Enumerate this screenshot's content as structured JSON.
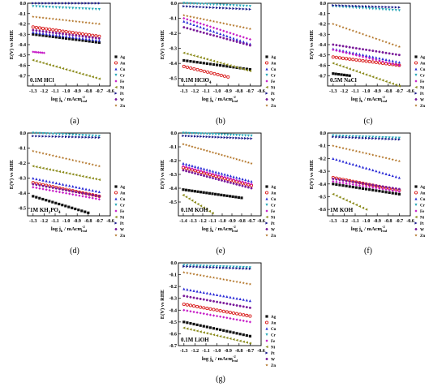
{
  "figure": {
    "ylabel": "E(V) vs RHE",
    "xlabel_main": "log j",
    "xlabel_sub": "k",
    "xlabel_unit": " / mAcm",
    "xlabel_sup": "-2",
    "xlabel_unit_sub": "real",
    "legend": [
      "Ag",
      "Au",
      "Cu",
      "Cr",
      "Fe",
      "Ni",
      "Pt",
      "W",
      "Zn"
    ]
  },
  "series_style": {
    "Ag": {
      "color": "#111111",
      "marker": "square"
    },
    "Au": {
      "color": "#d81b1b",
      "marker": "circle"
    },
    "Cu": {
      "color": "#2a2ad6",
      "marker": "triangle"
    },
    "Cr": {
      "color": "#27a8b8",
      "marker": "triangle-down"
    },
    "Fe": {
      "color": "#c61ac6",
      "marker": "diamond"
    },
    "Ni": {
      "color": "#8a8a1a",
      "marker": "triangle-left"
    },
    "Pt": {
      "color": "#1a1a8a",
      "marker": "triangle-right"
    },
    "W": {
      "color": "#7a1a9a",
      "marker": "hexagon"
    },
    "Zn": {
      "color": "#b07020",
      "marker": "star"
    }
  },
  "chart_data": [
    {
      "type": "scatter",
      "caption": "(a)",
      "label_main": "0.1M HCl",
      "label_sub": "",
      "xlim": [
        -1.35,
        -0.6
      ],
      "ylim": [
        -0.8,
        0.0
      ],
      "xticks": [
        "-1.3",
        "-1.2",
        "-1.1",
        "-1.0",
        "-0.9",
        "-0.8",
        "-0.7",
        "-0.6"
      ],
      "yticks": [
        "0.0",
        "-0.1",
        "-0.2",
        "-0.3",
        "-0.4",
        "-0.5",
        "-0.6",
        "-0.7"
      ],
      "series": [
        {
          "name": "Ag",
          "x": [
            -1.3,
            -0.7
          ],
          "y": [
            -0.3,
            -0.38
          ]
        },
        {
          "name": "Au",
          "x": [
            -1.3,
            -0.7
          ],
          "y": [
            -0.23,
            -0.32
          ]
        },
        {
          "name": "Cu",
          "x": [
            -1.3,
            -0.7
          ],
          "y": [
            -0.28,
            -0.36
          ]
        },
        {
          "name": "Cr",
          "x": [
            -1.3,
            -0.7
          ],
          "y": [
            -0.03,
            -0.06
          ]
        },
        {
          "name": "Fe",
          "x": [
            -1.3,
            -1.2
          ],
          "y": [
            -0.47,
            -0.48
          ]
        },
        {
          "name": "Ni",
          "x": [
            -1.3,
            -0.7
          ],
          "y": [
            -0.55,
            -0.73
          ]
        },
        {
          "name": "Pt",
          "x": [
            -1.3,
            -0.7
          ],
          "y": [
            0.0,
            0.0
          ]
        },
        {
          "name": "W",
          "x": [
            -1.3,
            -0.7
          ],
          "y": [
            -0.26,
            -0.34
          ]
        },
        {
          "name": "Zn",
          "x": [
            -1.3,
            -0.7
          ],
          "y": [
            -0.13,
            -0.2
          ]
        }
      ]
    },
    {
      "type": "scatter",
      "caption": "(b)",
      "label_main": "0.1M HClO",
      "label_sub": "4",
      "xlim": [
        -1.35,
        -0.6
      ],
      "ylim": [
        -0.55,
        0.0
      ],
      "xticks": [
        "-1.3",
        "-1.2",
        "-1.1",
        "-1.0",
        "-0.9",
        "-0.8",
        "-0.7",
        "-0.6"
      ],
      "yticks": [
        "0.0",
        "-0.1",
        "-0.2",
        "-0.3",
        "-0.4",
        "-0.5"
      ],
      "series": [
        {
          "name": "Ag",
          "x": [
            -1.3,
            -0.7
          ],
          "y": [
            -0.38,
            -0.44
          ]
        },
        {
          "name": "Au",
          "x": [
            -1.3,
            -0.9
          ],
          "y": [
            -0.42,
            -0.49
          ]
        },
        {
          "name": "Cu",
          "x": [
            -1.3,
            -0.7
          ],
          "y": [
            -0.12,
            -0.27
          ]
        },
        {
          "name": "Cr",
          "x": [
            -1.3,
            -0.7
          ],
          "y": [
            0.0,
            -0.02
          ]
        },
        {
          "name": "Fe",
          "x": [
            -1.3,
            -0.7
          ],
          "y": [
            -0.1,
            -0.24
          ]
        },
        {
          "name": "Ni",
          "x": [
            -1.3,
            -0.7
          ],
          "y": [
            -0.33,
            -0.45
          ]
        },
        {
          "name": "Pt",
          "x": [
            -1.3,
            -0.7
          ],
          "y": [
            -0.02,
            -0.04
          ]
        },
        {
          "name": "W",
          "x": [
            -1.3,
            -0.7
          ],
          "y": [
            -0.16,
            -0.28
          ]
        },
        {
          "name": "Zn",
          "x": [
            -1.3,
            -0.7
          ],
          "y": [
            -0.08,
            -0.17
          ]
        }
      ]
    },
    {
      "type": "scatter",
      "caption": "(c)",
      "label_main": "0.5M NaCl",
      "label_sub": "",
      "xlim": [
        -1.35,
        -0.6
      ],
      "ylim": [
        -0.8,
        0.0
      ],
      "xticks": [
        "-1.3",
        "-1.2",
        "-1.1",
        "-1.0",
        "-0.9",
        "-0.8",
        "-0.7",
        "-0.6"
      ],
      "yticks": [
        "0.0",
        "-0.1",
        "-0.2",
        "-0.3",
        "-0.4",
        "-0.5",
        "-0.6",
        "-0.7"
      ],
      "series": [
        {
          "name": "Ag",
          "x": [
            -1.3,
            -1.15
          ],
          "y": [
            -0.68,
            -0.7
          ]
        },
        {
          "name": "Au",
          "x": [
            -1.3,
            -0.7
          ],
          "y": [
            -0.52,
            -0.6
          ]
        },
        {
          "name": "Cu",
          "x": [
            -1.3,
            -0.7
          ],
          "y": [
            -0.44,
            -0.57
          ]
        },
        {
          "name": "Cr",
          "x": [
            -1.3,
            -0.7
          ],
          "y": [
            -0.03,
            -0.07
          ]
        },
        {
          "name": "Fe",
          "x": [
            -1.3,
            -0.7
          ],
          "y": [
            -0.45,
            -0.6
          ]
        },
        {
          "name": "Ni",
          "x": [
            -1.3,
            -0.7
          ],
          "y": [
            -0.58,
            -0.8
          ]
        },
        {
          "name": "Pt",
          "x": [
            -1.3,
            -0.7
          ],
          "y": [
            -0.02,
            -0.04
          ]
        },
        {
          "name": "W",
          "x": [
            -1.3,
            -0.7
          ],
          "y": [
            -0.4,
            -0.5
          ]
        },
        {
          "name": "Zn",
          "x": [
            -1.3,
            -0.7
          ],
          "y": [
            -0.2,
            -0.42
          ]
        }
      ]
    },
    {
      "type": "scatter",
      "caption": "(d)",
      "label_main": "1M KH",
      "label_sub": "2",
      "label_tail": "PO",
      "label_sub2": "4",
      "xlim": [
        -1.35,
        -0.6
      ],
      "ylim": [
        -0.55,
        0.0
      ],
      "xticks": [
        "-1.3",
        "-1.2",
        "-1.1",
        "-1.0",
        "-0.9",
        "-0.8",
        "-0.7",
        "-0.6"
      ],
      "yticks": [
        "0.0",
        "-0.1",
        "-0.2",
        "-0.3",
        "-0.4",
        "-0.5"
      ],
      "series": [
        {
          "name": "Ag",
          "x": [
            -1.3,
            -0.8
          ],
          "y": [
            -0.42,
            -0.53
          ]
        },
        {
          "name": "Au",
          "x": [
            -1.3,
            -0.7
          ],
          "y": [
            -0.33,
            -0.42
          ]
        },
        {
          "name": "Cu",
          "x": [
            -1.3,
            -0.7
          ],
          "y": [
            -0.3,
            -0.39
          ]
        },
        {
          "name": "Cr",
          "x": [
            -1.3,
            -0.7
          ],
          "y": [
            0.0,
            -0.02
          ]
        },
        {
          "name": "Fe",
          "x": [
            -1.3,
            -0.7
          ],
          "y": [
            -0.36,
            -0.44
          ]
        },
        {
          "name": "Ni",
          "x": [
            -1.3,
            -0.7
          ],
          "y": [
            -0.22,
            -0.31
          ]
        },
        {
          "name": "Pt",
          "x": [
            -1.3,
            -0.7
          ],
          "y": [
            -0.02,
            -0.03
          ]
        },
        {
          "name": "W",
          "x": [
            -1.3,
            -0.7
          ],
          "y": [
            -0.34,
            -0.42
          ]
        },
        {
          "name": "Zn",
          "x": [
            -1.3,
            -0.7
          ],
          "y": [
            -0.12,
            -0.22
          ]
        }
      ]
    },
    {
      "type": "scatter",
      "caption": "(e)",
      "label_main": "0.1M KOH",
      "label_sub": "",
      "xlim": [
        -1.45,
        -0.6
      ],
      "ylim": [
        -0.6,
        0.0
      ],
      "xticks": [
        "-1.4",
        "-1.3",
        "-1.2",
        "-1.1",
        "-1.0",
        "-0.9",
        "-0.8",
        "-0.7",
        "-0.6"
      ],
      "yticks": [
        "0.0",
        "-0.1",
        "-0.2",
        "-0.3",
        "-0.4",
        "-0.5"
      ],
      "series": [
        {
          "name": "Ag",
          "x": [
            -1.4,
            -0.8
          ],
          "y": [
            -0.41,
            -0.47
          ]
        },
        {
          "name": "Au",
          "x": [
            -1.4,
            -0.7
          ],
          "y": [
            -0.25,
            -0.38
          ]
        },
        {
          "name": "Cu",
          "x": [
            -1.4,
            -0.7
          ],
          "y": [
            -0.22,
            -0.35
          ]
        },
        {
          "name": "Cr",
          "x": [
            -1.4,
            -0.7
          ],
          "y": [
            0.0,
            -0.02
          ]
        },
        {
          "name": "Fe",
          "x": [
            -1.4,
            -0.7
          ],
          "y": [
            -0.24,
            -0.37
          ]
        },
        {
          "name": "Ni",
          "x": [
            -1.4,
            -1.1
          ],
          "y": [
            -0.45,
            -0.58
          ]
        },
        {
          "name": "Pt",
          "x": [
            -1.4,
            -0.7
          ],
          "y": [
            -0.02,
            -0.04
          ]
        },
        {
          "name": "W",
          "x": [
            -1.4,
            -0.7
          ],
          "y": [
            -0.27,
            -0.4
          ]
        },
        {
          "name": "Zn",
          "x": [
            -1.4,
            -0.7
          ],
          "y": [
            -0.08,
            -0.22
          ]
        }
      ]
    },
    {
      "type": "scatter",
      "caption": "(f)",
      "label_main": "1M KOH",
      "label_sub": "",
      "xlim": [
        -1.35,
        -0.6
      ],
      "ylim": [
        -0.65,
        0.0
      ],
      "xticks": [
        "-1.3",
        "-1.2",
        "-1.1",
        "-1.0",
        "-0.9",
        "-0.8",
        "-0.7",
        "-0.6"
      ],
      "yticks": [
        "0.0",
        "-0.1",
        "-0.2",
        "-0.3",
        "-0.4",
        "-0.5",
        "-0.6"
      ],
      "series": [
        {
          "name": "Ag",
          "x": [
            -1.3,
            -0.7
          ],
          "y": [
            -0.4,
            -0.48
          ]
        },
        {
          "name": "Au",
          "x": [
            -1.3,
            -0.7
          ],
          "y": [
            -0.35,
            -0.45
          ]
        },
        {
          "name": "Cu",
          "x": [
            -1.3,
            -0.7
          ],
          "y": [
            -0.2,
            -0.35
          ]
        },
        {
          "name": "Cr",
          "x": [
            -1.3,
            -0.7
          ],
          "y": [
            -0.02,
            -0.04
          ]
        },
        {
          "name": "Fe",
          "x": [
            -1.3,
            -0.7
          ],
          "y": [
            -0.38,
            -0.46
          ]
        },
        {
          "name": "Ni",
          "x": [
            -1.3,
            -1.0
          ],
          "y": [
            -0.48,
            -0.6
          ]
        },
        {
          "name": "Pt",
          "x": [
            -1.3,
            -0.7
          ],
          "y": [
            -0.03,
            -0.05
          ]
        },
        {
          "name": "W",
          "x": [
            -1.3,
            -0.7
          ],
          "y": [
            -0.36,
            -0.44
          ]
        },
        {
          "name": "Zn",
          "x": [
            -1.3,
            -0.7
          ],
          "y": [
            -0.1,
            -0.22
          ]
        }
      ]
    },
    {
      "type": "scatter",
      "caption": "(g)",
      "label_main": "0.1M LiOH",
      "label_sub": "",
      "xlim": [
        -1.35,
        -0.6
      ],
      "ylim": [
        -0.7,
        0.0
      ],
      "xticks": [
        "-1.3",
        "-1.2",
        "-1.1",
        "-1.0",
        "-0.9",
        "-0.8",
        "-0.7",
        "-0.6"
      ],
      "yticks": [
        "0.0",
        "-0.1",
        "-0.2",
        "-0.3",
        "-0.4",
        "-0.5",
        "-0.6",
        "-0.7"
      ],
      "series": [
        {
          "name": "Ag",
          "x": [
            -1.3,
            -0.7
          ],
          "y": [
            -0.5,
            -0.62
          ]
        },
        {
          "name": "Au",
          "x": [
            -1.3,
            -0.7
          ],
          "y": [
            -0.35,
            -0.45
          ]
        },
        {
          "name": "Cu",
          "x": [
            -1.3,
            -0.7
          ],
          "y": [
            -0.22,
            -0.32
          ]
        },
        {
          "name": "Cr",
          "x": [
            -1.3,
            -0.7
          ],
          "y": [
            -0.02,
            -0.04
          ]
        },
        {
          "name": "Fe",
          "x": [
            -1.3,
            -0.7
          ],
          "y": [
            -0.4,
            -0.5
          ]
        },
        {
          "name": "Ni",
          "x": [
            -1.3,
            -0.7
          ],
          "y": [
            -0.55,
            -0.68
          ]
        },
        {
          "name": "Pt",
          "x": [
            -1.3,
            -0.7
          ],
          "y": [
            -0.03,
            -0.05
          ]
        },
        {
          "name": "W",
          "x": [
            -1.3,
            -0.7
          ],
          "y": [
            -0.28,
            -0.38
          ]
        },
        {
          "name": "Zn",
          "x": [
            -1.3,
            -0.7
          ],
          "y": [
            -0.08,
            -0.18
          ]
        }
      ]
    }
  ]
}
